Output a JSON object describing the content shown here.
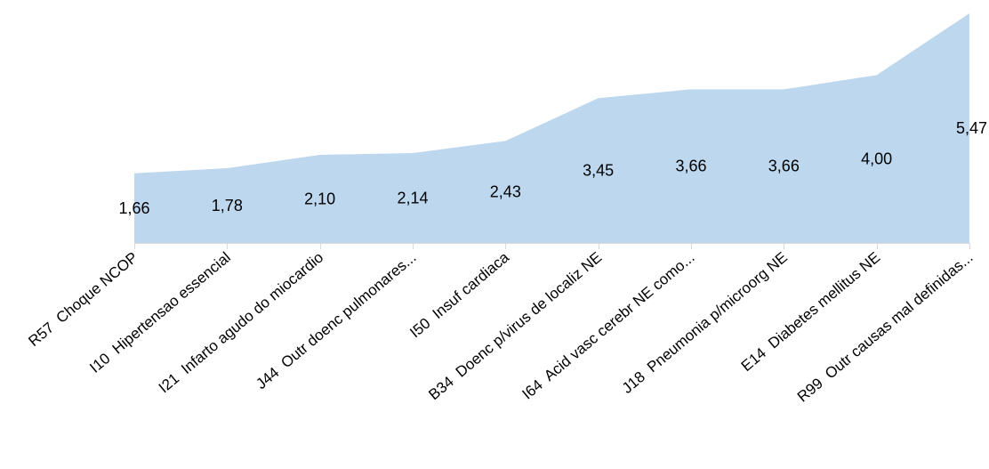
{
  "chart_data": {
    "type": "area",
    "categories": [
      "R57  Choque NCOP",
      "I10  Hipertensao essencial",
      "I21  Infarto agudo do miocardio",
      "J44  Outr doenc pulmonares...",
      "I50  Insuf cardiaca",
      "B34  Doenc p/virus de localiz NE",
      "I64  Acid vasc cerebr NE como...",
      "J18  Pneumonia p/microorg NE",
      "E14  Diabetes mellitus NE",
      "R99  Outr causas mal definidas..."
    ],
    "values": [
      1.66,
      1.78,
      2.1,
      2.14,
      2.43,
      3.45,
      3.66,
      3.66,
      4.0,
      5.47
    ],
    "data_labels": [
      "1,66",
      "1,78",
      "2,10",
      "2,14",
      "2,43",
      "3,45",
      "3,66",
      "3,66",
      "4,00",
      "5,47"
    ],
    "ylim": [
      0,
      5.47
    ],
    "grid": false,
    "legend": "none",
    "colors": {
      "fill": "#bdd7ee",
      "axis": "#d9d9d9",
      "text": "#000000"
    }
  }
}
